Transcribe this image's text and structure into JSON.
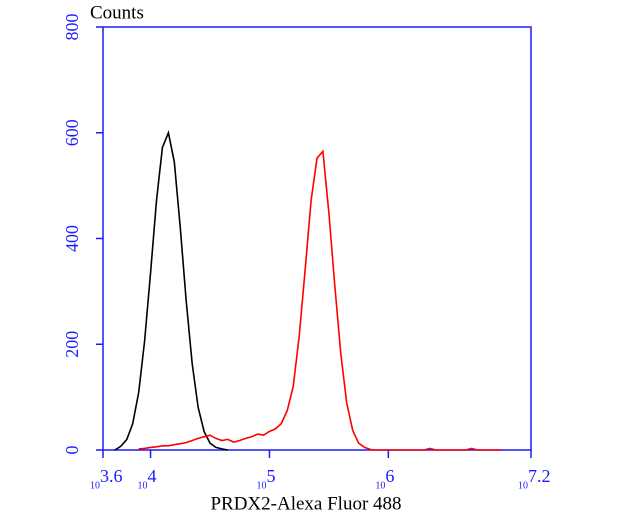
{
  "chart_data": {
    "type": "line",
    "y_label": "Counts",
    "x_label": "PRDX2-Alexa Fluor 488",
    "x_scale_base": "10",
    "x": [
      3.6,
      3.65,
      3.7,
      3.75,
      3.8,
      3.85,
      3.9,
      3.95,
      4.0,
      4.05,
      4.1,
      4.15,
      4.2,
      4.25,
      4.3,
      4.35,
      4.4,
      4.45,
      4.5,
      4.55,
      4.6,
      4.65,
      4.7,
      4.75,
      4.8,
      4.85,
      4.9,
      4.95,
      5.0,
      5.05,
      5.1,
      5.15,
      5.2,
      5.25,
      5.3,
      5.35,
      5.4,
      5.45,
      5.5,
      5.55,
      5.6,
      5.65,
      5.7,
      5.75,
      5.8,
      5.85,
      5.9,
      5.95,
      6.0,
      6.05,
      6.1,
      6.15,
      6.2,
      6.25,
      6.3,
      6.35,
      6.4,
      6.45,
      6.5,
      6.55,
      6.6,
      6.65,
      6.7,
      6.75,
      6.8,
      6.85,
      6.9,
      6.95,
      7.0,
      7.05,
      7.1,
      7.15,
      7.2
    ],
    "series": [
      {
        "color": "#000000",
        "values": [
          null,
          null,
          0,
          7,
          20,
          50,
          109,
          206,
          336,
          472,
          572,
          600,
          545,
          420,
          282,
          163,
          81,
          35,
          13,
          5,
          2,
          0,
          null,
          null,
          null,
          null,
          null,
          null,
          null,
          null,
          null,
          null,
          null,
          null,
          null,
          null,
          null,
          null,
          null,
          null,
          null,
          null,
          null,
          null,
          null,
          null,
          null,
          null,
          null,
          null,
          null,
          null,
          null,
          null,
          null,
          null,
          null,
          null,
          null,
          null,
          null,
          null,
          null,
          null,
          null,
          null,
          null,
          null,
          null,
          null,
          null,
          null,
          null
        ]
      },
      {
        "color": "#ff0000",
        "values": [
          null,
          null,
          null,
          null,
          null,
          null,
          2,
          3,
          5,
          6,
          8,
          8,
          10,
          12,
          14,
          18,
          22,
          25,
          28,
          22,
          18,
          20,
          15,
          18,
          22,
          25,
          30,
          28,
          35,
          40,
          50,
          75,
          120,
          215,
          340,
          472,
          552,
          565,
          448,
          311,
          182,
          89,
          37,
          13,
          5,
          1,
          0,
          0,
          0,
          0,
          0,
          0,
          0,
          0,
          0,
          3,
          0,
          0,
          0,
          0,
          0,
          0,
          3,
          0,
          0,
          0,
          0,
          0,
          null,
          null,
          null,
          null,
          null
        ]
      }
    ],
    "xlim": [
      3.6,
      7.2
    ],
    "xticks": [
      3.6,
      4,
      5,
      6,
      7.2
    ],
    "ylim": [
      0,
      800
    ],
    "yticks": [
      0,
      200,
      400,
      600,
      800
    ],
    "axis_color": "#1a1aff"
  }
}
